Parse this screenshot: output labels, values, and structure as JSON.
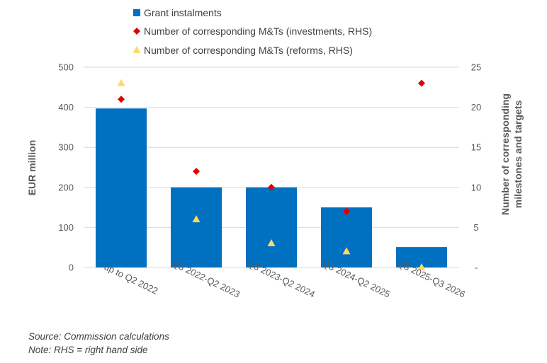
{
  "chart_data": {
    "type": "bar",
    "categories": [
      "up to Q2 2022",
      "Q3 2022-Q2 2023",
      "Q3 2023-Q2 2024",
      "Q3 2024-Q2 2025",
      "Q3 2025-Q3 2026"
    ],
    "series": [
      {
        "name": "Grant instalments",
        "type": "bar",
        "axis": "left",
        "color": "#0070C0",
        "marker": "square",
        "values": [
          397,
          200,
          200,
          150,
          51
        ]
      },
      {
        "name": "Number of corresponding M&Ts (investments, RHS)",
        "type": "scatter",
        "axis": "right",
        "color": "#E00000",
        "marker": "diamond",
        "values": [
          21,
          12,
          10,
          7,
          23
        ]
      },
      {
        "name": "Number of corresponding M&Ts (reforms, RHS)",
        "type": "scatter",
        "axis": "right",
        "color": "#FFD966",
        "marker": "triangle",
        "values": [
          23,
          6,
          3,
          2,
          0
        ]
      }
    ],
    "ylabel": "EUR million",
    "y2label_lines": [
      "Number of corresponding",
      "milestones and targets"
    ],
    "ylim": [
      0,
      500
    ],
    "yticks": [
      "0",
      "100",
      "200",
      "300",
      "400",
      "500"
    ],
    "y2lim": [
      0,
      25
    ],
    "y2ticks": [
      "-",
      "5",
      "10",
      "15",
      "20",
      "25"
    ],
    "grid": true,
    "legend_position": "top"
  },
  "notes": {
    "source": "Source: Commission calculations",
    "rhs": "Note: RHS = right hand side"
  }
}
